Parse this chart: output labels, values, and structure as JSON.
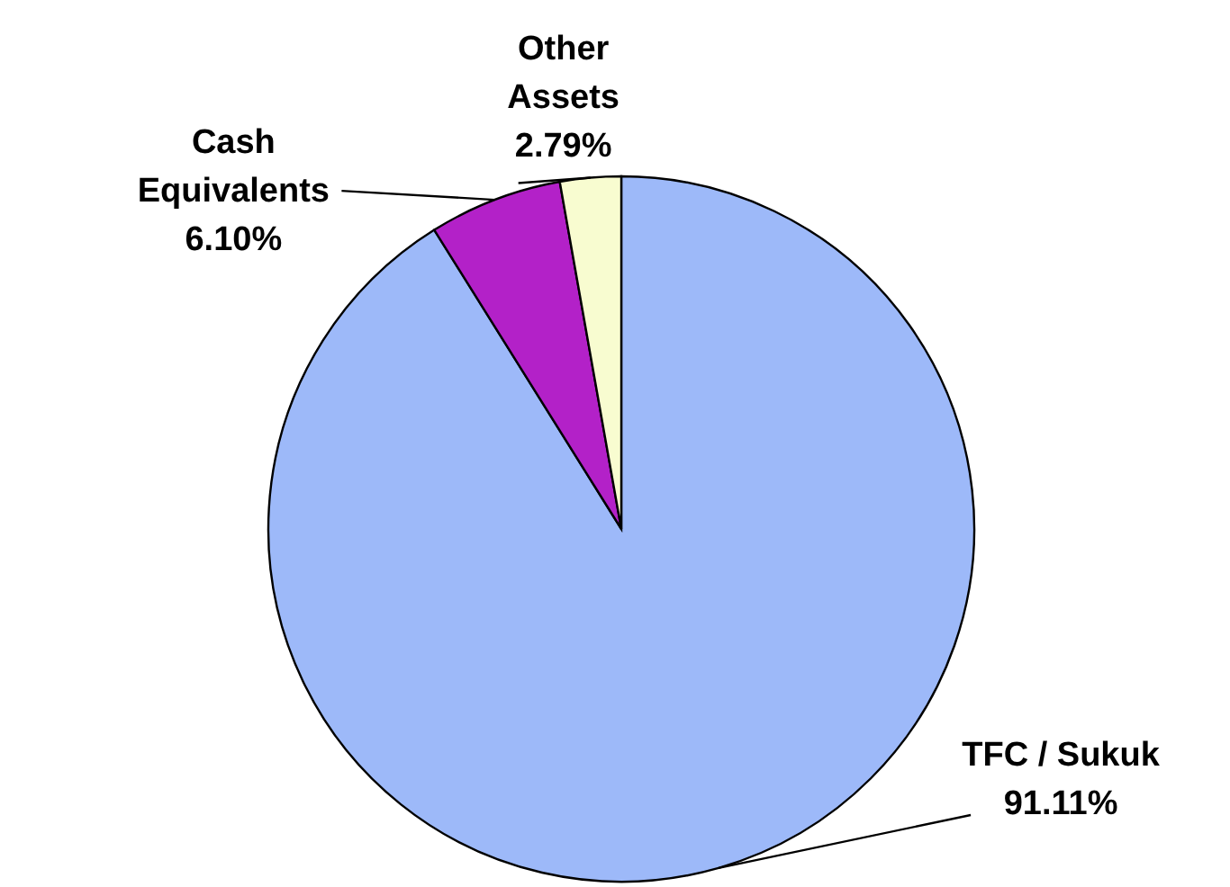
{
  "chart_data": {
    "type": "pie",
    "categories": [
      "TFC / Sukuk",
      "Cash\nEquivalents",
      "Other\nAssets"
    ],
    "values": [
      91.11,
      6.1,
      2.79
    ],
    "value_labels": [
      "91.11%",
      "6.10%",
      "2.79%"
    ],
    "colors": [
      "#9db9f9",
      "#b321c8",
      "#f8fcd0"
    ]
  }
}
